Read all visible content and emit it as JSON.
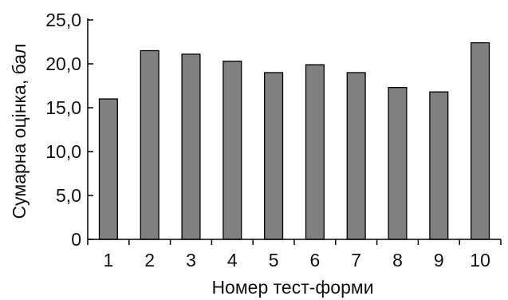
{
  "chart_data": {
    "type": "bar",
    "categories": [
      "1",
      "2",
      "3",
      "4",
      "5",
      "6",
      "7",
      "8",
      "9",
      "10"
    ],
    "values": [
      16.0,
      21.5,
      21.1,
      20.3,
      19.0,
      19.9,
      19.0,
      17.3,
      16.8,
      22.4
    ],
    "xlabel": "Номер тест-форми",
    "ylabel": "Сумарна оцінка, бал",
    "ylim": [
      0,
      25
    ],
    "yticks": [
      "0",
      "5,0",
      "10,0",
      "15,0",
      "20,0",
      "25,0"
    ],
    "ytick_values": [
      0,
      5,
      10,
      15,
      20,
      25
    ],
    "grid": false,
    "legend": "none",
    "colors": {
      "bar_fill": "#808080",
      "bar_stroke": "#000000",
      "axis": "#000000"
    }
  }
}
